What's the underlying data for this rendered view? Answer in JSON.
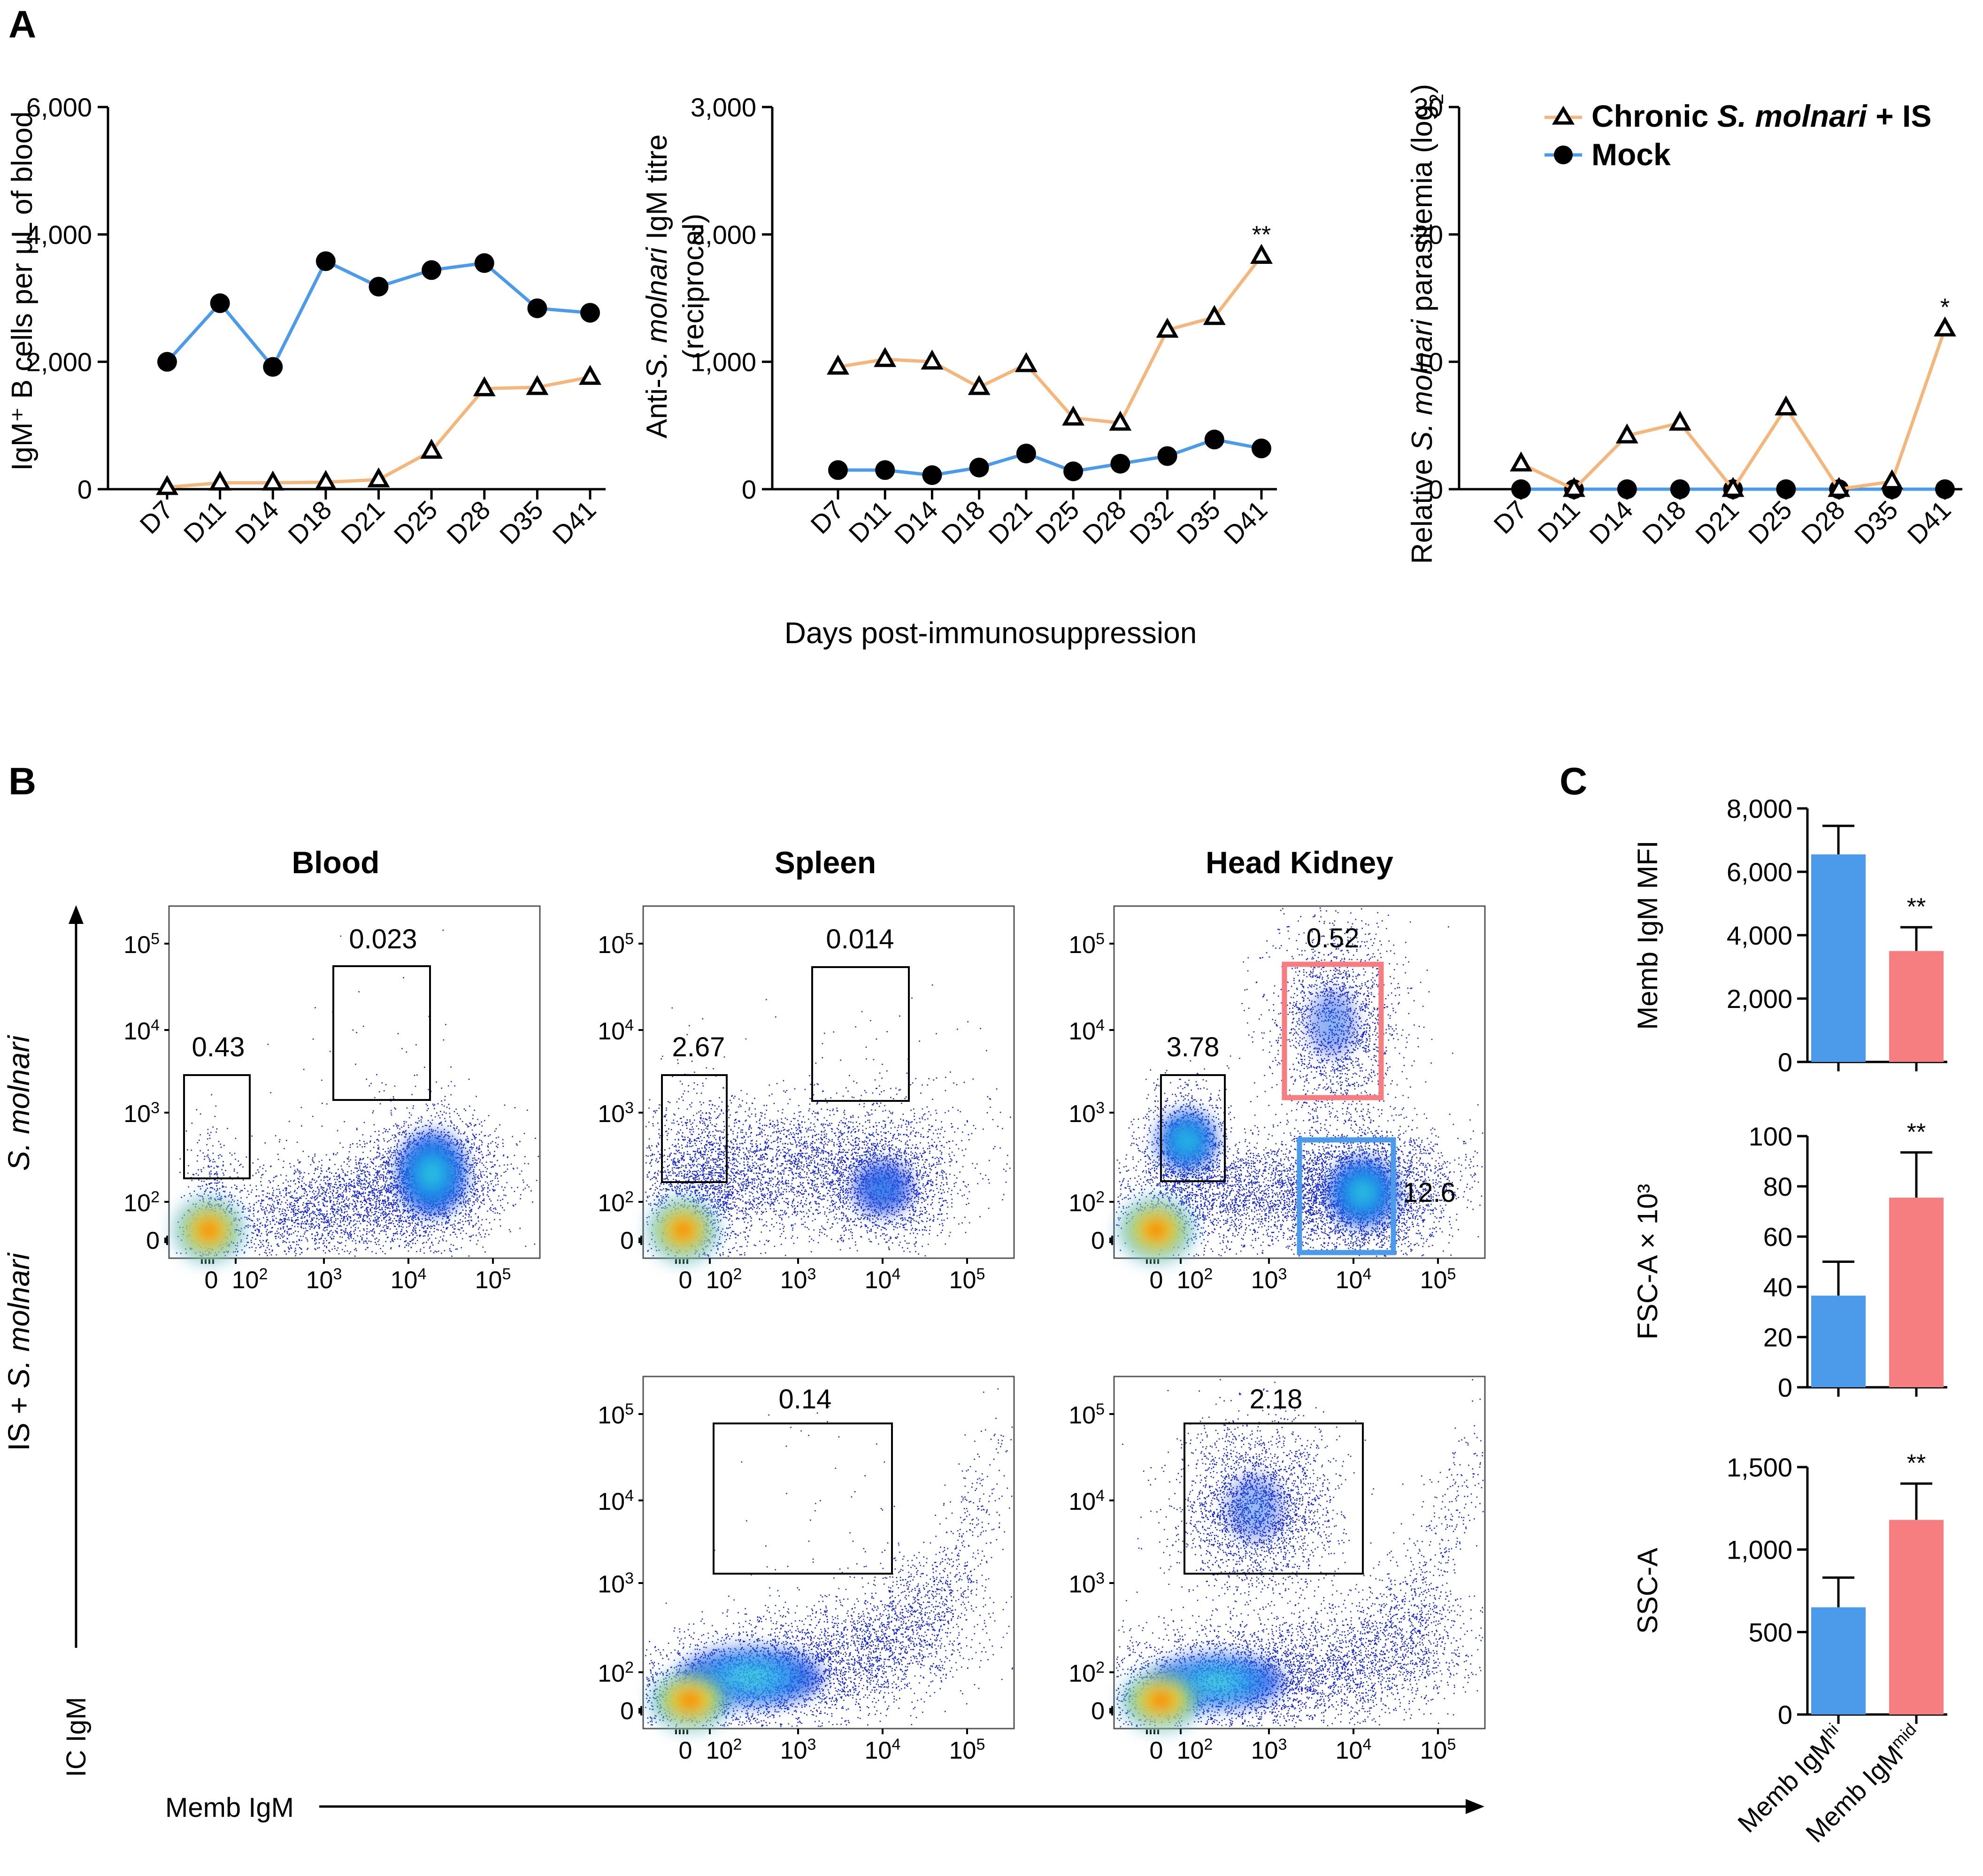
{
  "panels": {
    "A": "A",
    "B": "B",
    "C": "C"
  },
  "colors": {
    "chronic": "#F5B67C",
    "mock": "#4B9BEA",
    "hi_bar": "#4B9BEA",
    "mid_bar": "#F77E80",
    "gate": "#000000",
    "gate_mid": "#F77E80",
    "gate_hi": "#4B9BEA"
  },
  "legend": {
    "chronic_prefix": "Chronic ",
    "chronic_italic": "S. molnari",
    "chronic_suffix": " + IS",
    "mock": "Mock"
  },
  "shared_xlabel": "Days post-immunosuppression",
  "chart_data": [
    {
      "id": "A1",
      "type": "line",
      "ylabel": "IgM⁺ B cells per µL of blood",
      "ylim": [
        0,
        6000
      ],
      "yticks": [
        "0",
        "2,000",
        "4,000",
        "6,000"
      ],
      "categories": [
        "D7",
        "D11",
        "D14",
        "D18",
        "D21",
        "D25",
        "D28",
        "D35",
        "D41"
      ],
      "series": [
        {
          "name": "Chronic S. molnari + IS",
          "values": [
            30,
            100,
            100,
            110,
            150,
            600,
            1580,
            1600,
            1760
          ]
        },
        {
          "name": "Mock",
          "values": [
            2000,
            2920,
            1920,
            3580,
            3180,
            3440,
            3550,
            2840,
            2770
          ]
        }
      ]
    },
    {
      "id": "A2",
      "type": "line",
      "ylabel": "Anti-S. molnari IgM titre (reciprocal)",
      "ylim": [
        0,
        3000
      ],
      "yticks": [
        "0",
        "1,000",
        "2,000",
        "3,000"
      ],
      "categories": [
        "D7",
        "D11",
        "D14",
        "D18",
        "D21",
        "D25",
        "D28",
        "D32",
        "D35",
        "D41"
      ],
      "annotation": "**",
      "series": [
        {
          "name": "Chronic S. molnari + IS",
          "values": [
            960,
            1020,
            1000,
            800,
            980,
            560,
            520,
            1250,
            1350,
            1830
          ]
        },
        {
          "name": "Mock",
          "values": [
            150,
            150,
            110,
            170,
            280,
            140,
            200,
            260,
            390,
            320
          ]
        }
      ]
    },
    {
      "id": "A3",
      "type": "line",
      "ylabel": "Relative S. molnari parasitemia (log2)",
      "ylim": [
        0,
        30
      ],
      "yticks": [
        "0",
        "10",
        "20",
        "30"
      ],
      "categories": [
        "D7",
        "D11",
        "D14",
        "D18",
        "D21",
        "D25",
        "D28",
        "D35",
        "D41"
      ],
      "annotation": "*",
      "series": [
        {
          "name": "Chronic S. molnari + IS",
          "values": [
            2,
            0,
            4.2,
            5.2,
            0,
            6.4,
            0,
            0.6,
            12.6
          ]
        },
        {
          "name": "Mock",
          "values": [
            0,
            0,
            0,
            0,
            0,
            0,
            0,
            0,
            0
          ]
        }
      ]
    },
    {
      "id": "C1",
      "type": "bar",
      "ylabel": "Memb IgM MFI",
      "ylim": [
        0,
        8000
      ],
      "yticks": [
        "0",
        "2,000",
        "4,000",
        "6,000",
        "8,000"
      ],
      "categories": [
        "Memb IgM hi",
        "Memb IgM mid"
      ],
      "values": [
        6550,
        3500
      ],
      "errors": [
        900,
        750
      ],
      "annotation": "**"
    },
    {
      "id": "C2",
      "type": "bar",
      "ylabel": "FSC-A × 10³",
      "ylim": [
        0,
        100
      ],
      "yticks": [
        "0",
        "20",
        "40",
        "60",
        "80",
        "100"
      ],
      "categories": [
        "Memb IgM hi",
        "Memb IgM mid"
      ],
      "values": [
        36.5,
        75.5
      ],
      "errors": [
        13.5,
        18
      ],
      "annotation": "**"
    },
    {
      "id": "C3",
      "type": "bar",
      "ylabel": "SSC-A",
      "ylim": [
        0,
        1500
      ],
      "yticks": [
        "0",
        "500",
        "1,000",
        "1,500"
      ],
      "categories": [
        "Memb IgM hi",
        "Memb IgM mid"
      ],
      "values": [
        650,
        1180
      ],
      "errors": [
        180,
        220
      ],
      "annotation": "**"
    }
  ],
  "bar_xlabels": [
    {
      "main": "Memb IgM",
      "sup": "hi"
    },
    {
      "main": "Memb IgM",
      "sup": "mid"
    }
  ],
  "flow": {
    "columns": [
      "Blood",
      "Spleen",
      "Head Kidney"
    ],
    "row_labels": [
      {
        "prefix": "",
        "italic": "S. molnari"
      },
      {
        "prefix": "IS + ",
        "italic": "S. molnari"
      }
    ],
    "x_axis": "Memb IgM",
    "y_axis": "IC IgM",
    "tick_labels": {
      "zero": "0",
      "e2": "10",
      "e3": "10",
      "e4": "10",
      "e5": "10",
      "p2": "2",
      "p3": "3",
      "p4": "4",
      "p5": "5"
    },
    "plots": [
      {
        "id": "blood-top",
        "gates": [
          "0.43",
          "0.023"
        ]
      },
      {
        "id": "spleen-top",
        "gates": [
          "2.67",
          "0.014"
        ]
      },
      {
        "id": "hk-top",
        "gates": [
          "3.78",
          "0.52",
          "12.6"
        ]
      },
      {
        "id": "spleen-bottom",
        "gates": [
          "0.14"
        ]
      },
      {
        "id": "hk-bottom",
        "gates": [
          "2.18"
        ]
      }
    ]
  }
}
